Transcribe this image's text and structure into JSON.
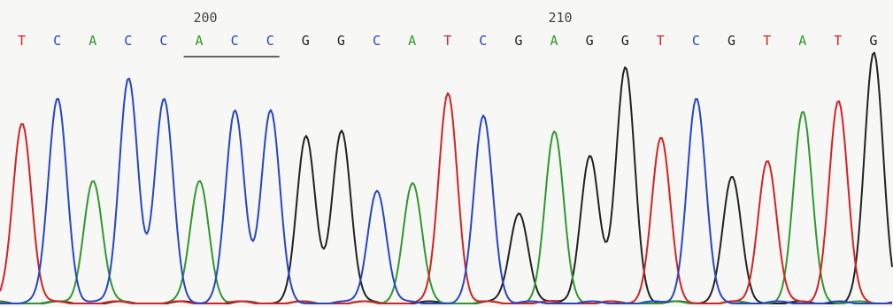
{
  "chart_data": {
    "type": "line",
    "position_labels": [
      {
        "text": "200",
        "base_index": 5
      },
      {
        "text": "210",
        "base_index": 15
      }
    ],
    "sequence": [
      "T",
      "C",
      "A",
      "C",
      "C",
      "A",
      "C",
      "C",
      "G",
      "G",
      "C",
      "A",
      "T",
      "C",
      "G",
      "A",
      "G",
      "G",
      "T",
      "C",
      "G",
      "T",
      "A",
      "T",
      "G"
    ],
    "underline": {
      "from_base": 5,
      "to_base": 7
    },
    "base_colors": {
      "A": "#2e9a2e",
      "C": "#2646c8",
      "G": "#222222",
      "T": "#d42323"
    },
    "peak_heights": [
      0.72,
      0.82,
      0.49,
      0.9,
      0.81,
      0.49,
      0.77,
      0.77,
      0.66,
      0.69,
      0.45,
      0.48,
      0.84,
      0.75,
      0.36,
      0.68,
      0.59,
      0.94,
      0.66,
      0.82,
      0.5,
      0.57,
      0.76,
      0.81,
      1.0
    ],
    "grid": false,
    "legend": false
  }
}
